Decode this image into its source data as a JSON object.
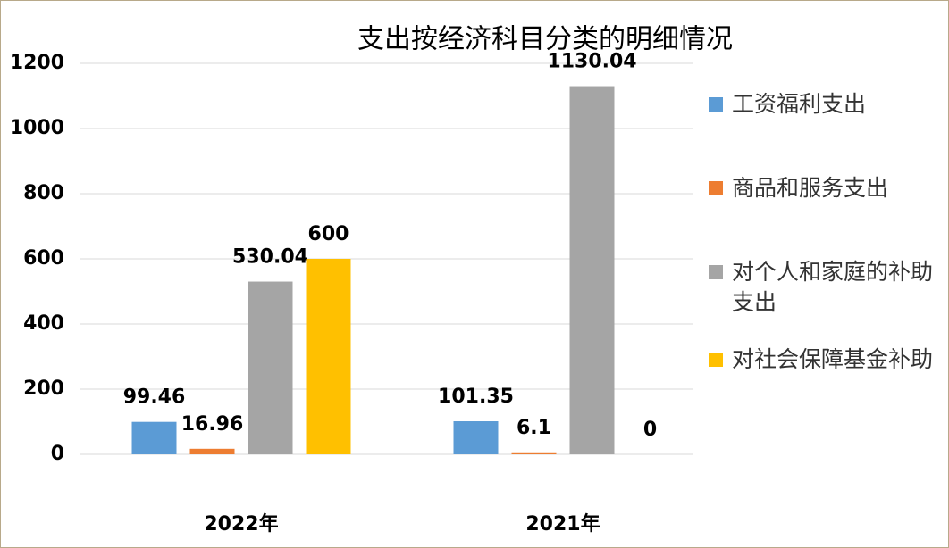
{
  "chart_data": {
    "type": "bar",
    "title": "支出按经济科目分类的明细情况",
    "categories": [
      "2022年",
      "2021年"
    ],
    "series": [
      {
        "name": "工资福利支出",
        "color": "#5b9bd5",
        "values": [
          99.46,
          101.35
        ]
      },
      {
        "name": "商品和服务支出",
        "color": "#ed7d31",
        "values": [
          16.96,
          6.1
        ]
      },
      {
        "name": "对个人和家庭的补助支出",
        "color": "#a5a5a5",
        "values": [
          530.04,
          1130.04
        ]
      },
      {
        "name": "对社会保障基金补助",
        "color": "#ffc000",
        "values": [
          600,
          0
        ]
      }
    ],
    "ylim": [
      0,
      1200
    ],
    "yticks": [
      0,
      200,
      400,
      600,
      800,
      1000,
      1200
    ],
    "grid": true,
    "legend": "right"
  }
}
